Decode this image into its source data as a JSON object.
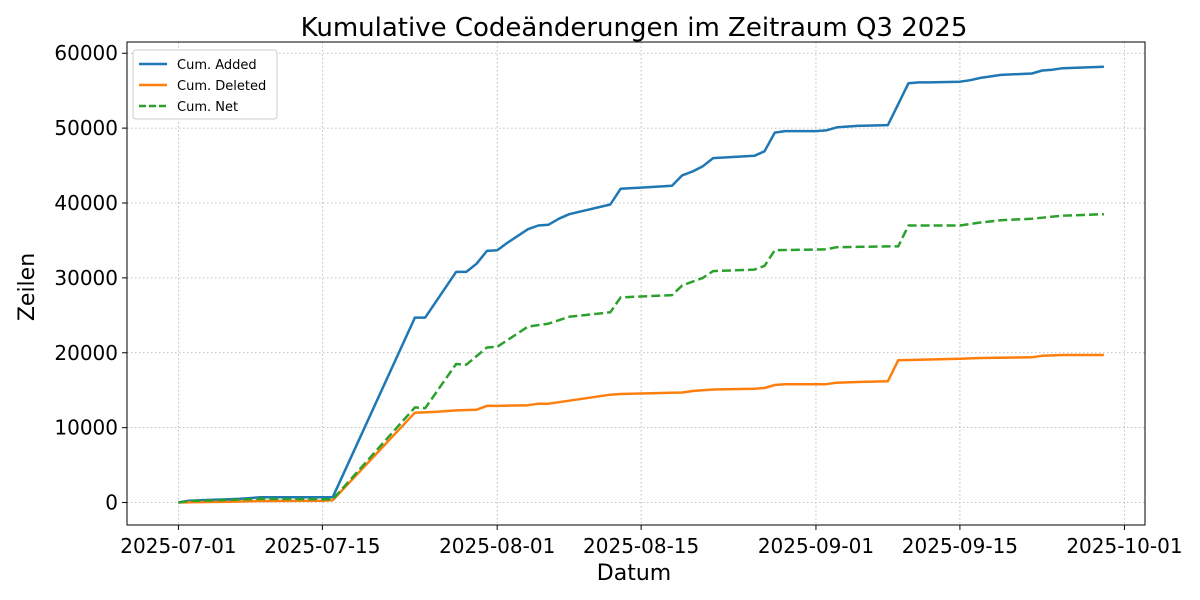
{
  "chart_data": {
    "type": "line",
    "title": "Kumulative Codeänderungen im Zeitraum Q3 2025",
    "xlabel": "Datum",
    "ylabel": "Zeilen",
    "xlim": [
      "2025-06-26",
      "2025-10-03"
    ],
    "ylim": [
      -3000,
      61500
    ],
    "grid": true,
    "legend_position": "top-left",
    "x_ticks": [
      "2025-07-01",
      "2025-07-15",
      "2025-08-01",
      "2025-08-15",
      "2025-09-01",
      "2025-09-15",
      "2025-10-01"
    ],
    "y_ticks": [
      0,
      10000,
      20000,
      30000,
      40000,
      50000,
      60000
    ],
    "series": [
      {
        "name": "Cum. Added",
        "color": "#1f77b4",
        "style": "solid",
        "points": [
          [
            "2025-07-01",
            0
          ],
          [
            "2025-07-02",
            250
          ],
          [
            "2025-07-04",
            350
          ],
          [
            "2025-07-06",
            450
          ],
          [
            "2025-07-07",
            500
          ],
          [
            "2025-07-09",
            700
          ],
          [
            "2025-07-15",
            700
          ],
          [
            "2025-07-16",
            700
          ],
          [
            "2025-07-24",
            24700
          ],
          [
            "2025-07-25",
            24700
          ],
          [
            "2025-07-28",
            30800
          ],
          [
            "2025-07-29",
            30800
          ],
          [
            "2025-07-30",
            31900
          ],
          [
            "2025-07-31",
            33600
          ],
          [
            "2025-08-01",
            33700
          ],
          [
            "2025-08-02",
            34700
          ],
          [
            "2025-08-04",
            36500
          ],
          [
            "2025-08-05",
            37000
          ],
          [
            "2025-08-06",
            37100
          ],
          [
            "2025-08-07",
            37900
          ],
          [
            "2025-08-08",
            38500
          ],
          [
            "2025-08-12",
            39800
          ],
          [
            "2025-08-13",
            41900
          ],
          [
            "2025-08-18",
            42300
          ],
          [
            "2025-08-19",
            43700
          ],
          [
            "2025-08-20",
            44200
          ],
          [
            "2025-08-21",
            44900
          ],
          [
            "2025-08-22",
            46000
          ],
          [
            "2025-08-26",
            46300
          ],
          [
            "2025-08-27",
            46900
          ],
          [
            "2025-08-28",
            49400
          ],
          [
            "2025-08-29",
            49600
          ],
          [
            "2025-09-01",
            49600
          ],
          [
            "2025-09-02",
            49700
          ],
          [
            "2025-09-03",
            50100
          ],
          [
            "2025-09-05",
            50300
          ],
          [
            "2025-09-08",
            50400
          ],
          [
            "2025-09-09",
            53200
          ],
          [
            "2025-09-10",
            56000
          ],
          [
            "2025-09-11",
            56100
          ],
          [
            "2025-09-12",
            56100
          ],
          [
            "2025-09-15",
            56200
          ],
          [
            "2025-09-16",
            56400
          ],
          [
            "2025-09-17",
            56700
          ],
          [
            "2025-09-19",
            57100
          ],
          [
            "2025-09-22",
            57300
          ],
          [
            "2025-09-23",
            57700
          ],
          [
            "2025-09-24",
            57800
          ],
          [
            "2025-09-25",
            58000
          ],
          [
            "2025-09-29",
            58200
          ]
        ]
      },
      {
        "name": "Cum. Deleted",
        "color": "#ff7f0e",
        "style": "solid",
        "points": [
          [
            "2025-07-01",
            0
          ],
          [
            "2025-07-02",
            50
          ],
          [
            "2025-07-06",
            100
          ],
          [
            "2025-07-09",
            200
          ],
          [
            "2025-07-15",
            250
          ],
          [
            "2025-07-16",
            300
          ],
          [
            "2025-07-24",
            12000
          ],
          [
            "2025-07-26",
            12100
          ],
          [
            "2025-07-28",
            12300
          ],
          [
            "2025-07-30",
            12400
          ],
          [
            "2025-07-31",
            12900
          ],
          [
            "2025-08-01",
            12900
          ],
          [
            "2025-08-04",
            13000
          ],
          [
            "2025-08-05",
            13200
          ],
          [
            "2025-08-06",
            13200
          ],
          [
            "2025-08-07",
            13400
          ],
          [
            "2025-08-12",
            14400
          ],
          [
            "2025-08-13",
            14500
          ],
          [
            "2025-08-19",
            14700
          ],
          [
            "2025-08-20",
            14900
          ],
          [
            "2025-08-21",
            15000
          ],
          [
            "2025-08-22",
            15100
          ],
          [
            "2025-08-26",
            15200
          ],
          [
            "2025-08-27",
            15300
          ],
          [
            "2025-08-28",
            15700
          ],
          [
            "2025-08-29",
            15800
          ],
          [
            "2025-09-02",
            15800
          ],
          [
            "2025-09-03",
            16000
          ],
          [
            "2025-09-05",
            16100
          ],
          [
            "2025-09-08",
            16200
          ],
          [
            "2025-09-09",
            19000
          ],
          [
            "2025-09-12",
            19100
          ],
          [
            "2025-09-15",
            19200
          ],
          [
            "2025-09-17",
            19300
          ],
          [
            "2025-09-22",
            19400
          ],
          [
            "2025-09-23",
            19600
          ],
          [
            "2025-09-25",
            19700
          ],
          [
            "2025-09-29",
            19700
          ]
        ]
      },
      {
        "name": "Cum. Net",
        "color": "#2ca02c",
        "style": "dashed",
        "points": [
          [
            "2025-07-01",
            0
          ],
          [
            "2025-07-02",
            200
          ],
          [
            "2025-07-06",
            350
          ],
          [
            "2025-07-09",
            500
          ],
          [
            "2025-07-15",
            450
          ],
          [
            "2025-07-16",
            400
          ],
          [
            "2025-07-24",
            12700
          ],
          [
            "2025-07-25",
            12600
          ],
          [
            "2025-07-28",
            18500
          ],
          [
            "2025-07-29",
            18400
          ],
          [
            "2025-07-31",
            20700
          ],
          [
            "2025-08-01",
            20800
          ],
          [
            "2025-08-04",
            23500
          ],
          [
            "2025-08-06",
            23900
          ],
          [
            "2025-08-08",
            24800
          ],
          [
            "2025-08-12",
            25400
          ],
          [
            "2025-08-13",
            27400
          ],
          [
            "2025-08-18",
            27700
          ],
          [
            "2025-08-19",
            29000
          ],
          [
            "2025-08-21",
            30000
          ],
          [
            "2025-08-22",
            30900
          ],
          [
            "2025-08-26",
            31100
          ],
          [
            "2025-08-27",
            31600
          ],
          [
            "2025-08-28",
            33700
          ],
          [
            "2025-09-02",
            33800
          ],
          [
            "2025-09-03",
            34100
          ],
          [
            "2025-09-08",
            34200
          ],
          [
            "2025-09-09",
            34200
          ],
          [
            "2025-09-10",
            37000
          ],
          [
            "2025-09-15",
            37000
          ],
          [
            "2025-09-17",
            37400
          ],
          [
            "2025-09-19",
            37700
          ],
          [
            "2025-09-22",
            37900
          ],
          [
            "2025-09-25",
            38300
          ],
          [
            "2025-09-29",
            38500
          ]
        ]
      }
    ]
  }
}
